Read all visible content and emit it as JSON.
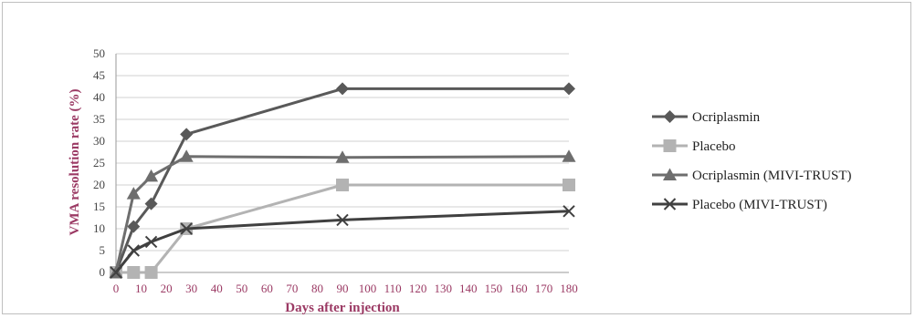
{
  "chart_data": {
    "type": "line",
    "xlabel": "Days after injection",
    "ylabel": "VMA resolution rate (%)",
    "xlim": [
      0,
      180
    ],
    "ylim": [
      0,
      50
    ],
    "x_ticks": [
      0,
      10,
      20,
      30,
      40,
      50,
      60,
      70,
      80,
      90,
      100,
      110,
      120,
      130,
      140,
      150,
      160,
      170,
      180
    ],
    "y_ticks": [
      0,
      5,
      10,
      15,
      20,
      25,
      30,
      35,
      40,
      45,
      50
    ],
    "grid": "horizontal",
    "legend_position": "right",
    "series": [
      {
        "name": "Ocriplasmin",
        "marker": "diamond",
        "color": "#595959",
        "points": [
          [
            0,
            0
          ],
          [
            7,
            10.5
          ],
          [
            14,
            15.7
          ],
          [
            28,
            31.6
          ],
          [
            90,
            42
          ],
          [
            180,
            42
          ]
        ]
      },
      {
        "name": "Placebo",
        "marker": "square",
        "color": "#b3b3b3",
        "points": [
          [
            0,
            0
          ],
          [
            7,
            0
          ],
          [
            14,
            0
          ],
          [
            28,
            10
          ],
          [
            90,
            20
          ],
          [
            180,
            20
          ]
        ]
      },
      {
        "name": "Ocriplasmin (MIVI-TRUST)",
        "marker": "triangle",
        "color": "#6e6e6e",
        "points": [
          [
            0,
            0
          ],
          [
            7,
            18
          ],
          [
            14,
            22
          ],
          [
            28,
            26.5
          ],
          [
            90,
            26.3
          ],
          [
            180,
            26.5
          ]
        ]
      },
      {
        "name": "Placebo (MIVI-TRUST)",
        "marker": "x",
        "color": "#404040",
        "points": [
          [
            0,
            0
          ],
          [
            7,
            5
          ],
          [
            14,
            7
          ],
          [
            28,
            10
          ],
          [
            90,
            12
          ],
          [
            180,
            14
          ]
        ]
      }
    ]
  }
}
